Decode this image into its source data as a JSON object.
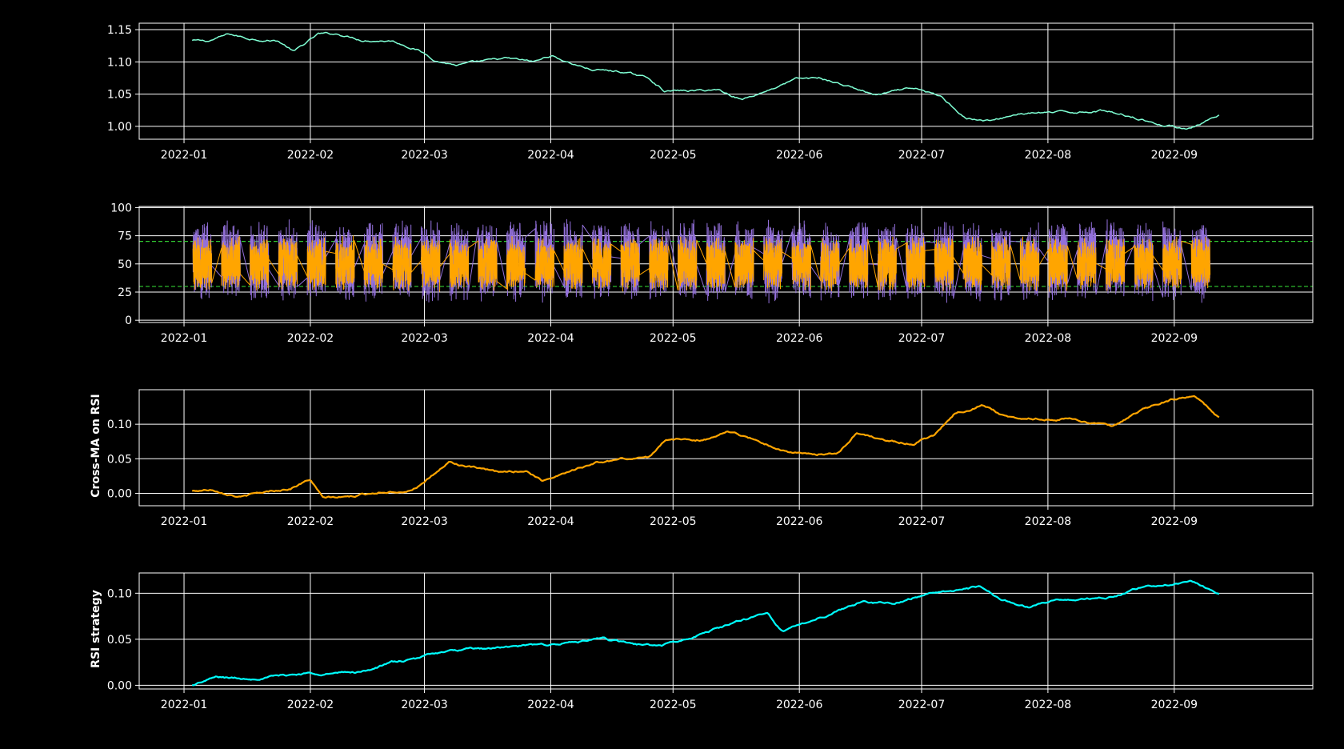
{
  "figure": {
    "background": "#000000",
    "foreground": "#ffffff",
    "grid_color": "#ffffff"
  },
  "chart_data": [
    {
      "type": "line",
      "title": "",
      "xlabel": "",
      "ylabel": "",
      "grid": true,
      "xtick_labels": [
        "2022-01",
        "2022-02",
        "2022-03",
        "2022-04",
        "2022-05",
        "2022-06",
        "2022-07",
        "2022-08",
        "2022-09"
      ],
      "yticks": [
        1.0,
        1.05,
        1.1,
        1.15
      ],
      "ytick_labels": [
        "1.00",
        "1.05",
        "1.10",
        "1.15"
      ],
      "xlim": [
        "2021-12-21",
        "2022-10-05"
      ],
      "ylim": [
        0.98,
        1.16
      ],
      "series": [
        {
          "color": "#7fffd4",
          "x": [
            "2022-01-03",
            "2022-01-07",
            "2022-01-12",
            "2022-01-17",
            "2022-01-24",
            "2022-01-28",
            "2022-02-03",
            "2022-02-08",
            "2022-02-14",
            "2022-02-21",
            "2022-02-27",
            "2022-03-04",
            "2022-03-09",
            "2022-03-15",
            "2022-03-21",
            "2022-03-28",
            "2022-04-01",
            "2022-04-05",
            "2022-04-11",
            "2022-04-18",
            "2022-04-25",
            "2022-04-29",
            "2022-05-06",
            "2022-05-12",
            "2022-05-18",
            "2022-05-25",
            "2022-05-31",
            "2022-06-06",
            "2022-06-13",
            "2022-06-20",
            "2022-06-27",
            "2022-07-01",
            "2022-07-06",
            "2022-07-12",
            "2022-07-18",
            "2022-07-25",
            "2022-08-01",
            "2022-08-08",
            "2022-08-15",
            "2022-08-22",
            "2022-08-29",
            "2022-09-05",
            "2022-09-12"
          ],
          "y": [
            1.133,
            1.132,
            1.143,
            1.136,
            1.133,
            1.116,
            1.143,
            1.143,
            1.134,
            1.133,
            1.12,
            1.102,
            1.095,
            1.1,
            1.105,
            1.1,
            1.11,
            1.1,
            1.088,
            1.085,
            1.075,
            1.055,
            1.055,
            1.057,
            1.042,
            1.058,
            1.073,
            1.075,
            1.062,
            1.048,
            1.057,
            1.056,
            1.045,
            1.013,
            1.008,
            1.02,
            1.021,
            1.022,
            1.025,
            1.015,
            1.002,
            0.997,
            1.015
          ]
        }
      ]
    },
    {
      "type": "line",
      "title": "",
      "xlabel": "",
      "ylabel": "",
      "grid": true,
      "xtick_labels": [
        "2022-01",
        "2022-02",
        "2022-03",
        "2022-04",
        "2022-05",
        "2022-06",
        "2022-07",
        "2022-08",
        "2022-09"
      ],
      "yticks": [
        0,
        25,
        50,
        75,
        100
      ],
      "ytick_labels": [
        "0",
        "25",
        "50",
        "75",
        "100"
      ],
      "xlim": [
        "2021-12-21",
        "2022-10-05"
      ],
      "ylim": [
        -2,
        101
      ],
      "reference_lines": [
        {
          "y": 70,
          "color": "#32cd32",
          "style": "dashed"
        },
        {
          "y": 30,
          "color": "#32cd32",
          "style": "dashed"
        }
      ],
      "series": [
        {
          "color": "#9370db",
          "description": "RSI oscillating roughly between 15 and 90, one cluster per trading week",
          "range": [
            15,
            90
          ]
        },
        {
          "color": "#ffa500",
          "description": "smoothed RSI oscillating roughly between 25 and 75, one cluster per trading week",
          "range": [
            25,
            75
          ]
        }
      ],
      "cluster_weeks": [
        "2022-01-03",
        "2022-01-10",
        "2022-01-17",
        "2022-01-24",
        "2022-01-31",
        "2022-02-07",
        "2022-02-14",
        "2022-02-21",
        "2022-02-28",
        "2022-03-07",
        "2022-03-14",
        "2022-03-21",
        "2022-03-28",
        "2022-04-04",
        "2022-04-11",
        "2022-04-18",
        "2022-04-25",
        "2022-05-02",
        "2022-05-09",
        "2022-05-16",
        "2022-05-23",
        "2022-05-30",
        "2022-06-06",
        "2022-06-13",
        "2022-06-20",
        "2022-06-27",
        "2022-07-04",
        "2022-07-11",
        "2022-07-18",
        "2022-07-25",
        "2022-08-01",
        "2022-08-08",
        "2022-08-15",
        "2022-08-22",
        "2022-08-29",
        "2022-09-05"
      ]
    },
    {
      "type": "line",
      "title": "",
      "xlabel": "",
      "ylabel": "Cross-MA on RSI",
      "grid": true,
      "xtick_labels": [
        "2022-01",
        "2022-02",
        "2022-03",
        "2022-04",
        "2022-05",
        "2022-06",
        "2022-07",
        "2022-08",
        "2022-09"
      ],
      "yticks": [
        0.0,
        0.05,
        0.1
      ],
      "ytick_labels": [
        "0.00",
        "0.05",
        "0.10"
      ],
      "xlim": [
        "2021-12-21",
        "2022-10-05"
      ],
      "ylim": [
        -0.018,
        0.15
      ],
      "series": [
        {
          "color": "#ffa500",
          "x": [
            "2022-01-03",
            "2022-01-08",
            "2022-01-15",
            "2022-01-22",
            "2022-01-27",
            "2022-02-01",
            "2022-02-04",
            "2022-02-11",
            "2022-02-18",
            "2022-02-25",
            "2022-03-01",
            "2022-03-07",
            "2022-03-12",
            "2022-03-19",
            "2022-03-26",
            "2022-03-30",
            "2022-04-05",
            "2022-04-12",
            "2022-04-19",
            "2022-04-25",
            "2022-04-29",
            "2022-05-05",
            "2022-05-10",
            "2022-05-14",
            "2022-05-21",
            "2022-05-28",
            "2022-06-04",
            "2022-06-11",
            "2022-06-15",
            "2022-06-23",
            "2022-06-29",
            "2022-07-04",
            "2022-07-09",
            "2022-07-16",
            "2022-07-22",
            "2022-07-29",
            "2022-08-05",
            "2022-08-10",
            "2022-08-17",
            "2022-08-24",
            "2022-08-31",
            "2022-09-06",
            "2022-09-12"
          ],
          "y": [
            0.003,
            0.006,
            -0.005,
            0.003,
            0.007,
            0.02,
            -0.007,
            -0.005,
            0.002,
            0.004,
            0.015,
            0.045,
            0.038,
            0.03,
            0.033,
            0.018,
            0.032,
            0.044,
            0.05,
            0.052,
            0.078,
            0.077,
            0.078,
            0.091,
            0.078,
            0.062,
            0.055,
            0.06,
            0.088,
            0.075,
            0.072,
            0.085,
            0.115,
            0.128,
            0.11,
            0.108,
            0.108,
            0.105,
            0.095,
            0.12,
            0.135,
            0.14,
            0.11
          ]
        }
      ]
    },
    {
      "type": "line",
      "title": "",
      "xlabel": "",
      "ylabel": "RSI strategy",
      "grid": true,
      "xtick_labels": [
        "2022-01",
        "2022-02",
        "2022-03",
        "2022-04",
        "2022-05",
        "2022-06",
        "2022-07",
        "2022-08",
        "2022-09"
      ],
      "yticks": [
        0.0,
        0.05,
        0.1
      ],
      "ytick_labels": [
        "0.00",
        "0.05",
        "0.10"
      ],
      "xlim": [
        "2021-12-21",
        "2022-10-05"
      ],
      "ylim": [
        -0.004,
        0.122
      ],
      "series": [
        {
          "color": "#00ffff",
          "x": [
            "2022-01-03",
            "2022-01-09",
            "2022-01-16",
            "2022-01-24",
            "2022-01-31",
            "2022-02-07",
            "2022-02-14",
            "2022-02-21",
            "2022-02-27",
            "2022-03-03",
            "2022-03-10",
            "2022-03-17",
            "2022-03-24",
            "2022-03-31",
            "2022-04-07",
            "2022-04-14",
            "2022-04-21",
            "2022-04-28",
            "2022-05-05",
            "2022-05-12",
            "2022-05-19",
            "2022-05-24",
            "2022-05-28",
            "2022-06-04",
            "2022-06-11",
            "2022-06-17",
            "2022-06-24",
            "2022-07-01",
            "2022-07-08",
            "2022-07-15",
            "2022-07-20",
            "2022-07-27",
            "2022-08-03",
            "2022-08-10",
            "2022-08-17",
            "2022-08-24",
            "2022-08-31",
            "2022-09-05",
            "2022-09-12"
          ],
          "y": [
            0.0,
            0.009,
            0.007,
            0.01,
            0.013,
            0.013,
            0.015,
            0.025,
            0.028,
            0.035,
            0.038,
            0.04,
            0.042,
            0.044,
            0.047,
            0.05,
            0.045,
            0.043,
            0.05,
            0.062,
            0.072,
            0.08,
            0.058,
            0.07,
            0.082,
            0.092,
            0.088,
            0.098,
            0.103,
            0.107,
            0.095,
            0.085,
            0.093,
            0.093,
            0.096,
            0.106,
            0.11,
            0.114,
            0.098
          ]
        }
      ]
    }
  ]
}
